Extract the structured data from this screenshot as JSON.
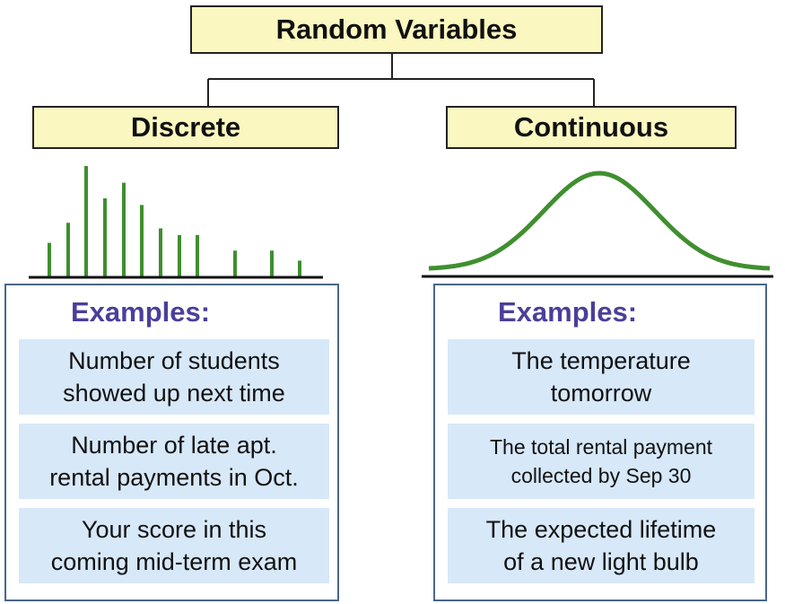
{
  "root": {
    "title": "Random Variables"
  },
  "discrete": {
    "title": "Discrete",
    "examples_heading": "Examples:",
    "examples": [
      "Number of students\nshowed up next time",
      "Number of late apt.\nrental payments in Oct.",
      "Your score in this\ncoming mid-term exam"
    ],
    "bar_levels": [
      0.31,
      0.49,
      1.0,
      0.71,
      0.85,
      0.65,
      0.44,
      0.38,
      0.38,
      0.24,
      0.24,
      0.15
    ]
  },
  "continuous": {
    "title": "Continuous",
    "examples_heading": "Examples:",
    "examples": [
      "The temperature\ntomorrow",
      "The total rental payment\ncollected by Sep 30",
      "The expected lifetime\nof a new light bulb"
    ]
  },
  "colors": {
    "title_fill": "#fbf7c0",
    "green": "#3f8f2f",
    "panel_border": "#4a6788",
    "example_fill": "#d7e8f8",
    "heading": "#4b3f9a"
  },
  "footer": {
    "text": ""
  }
}
